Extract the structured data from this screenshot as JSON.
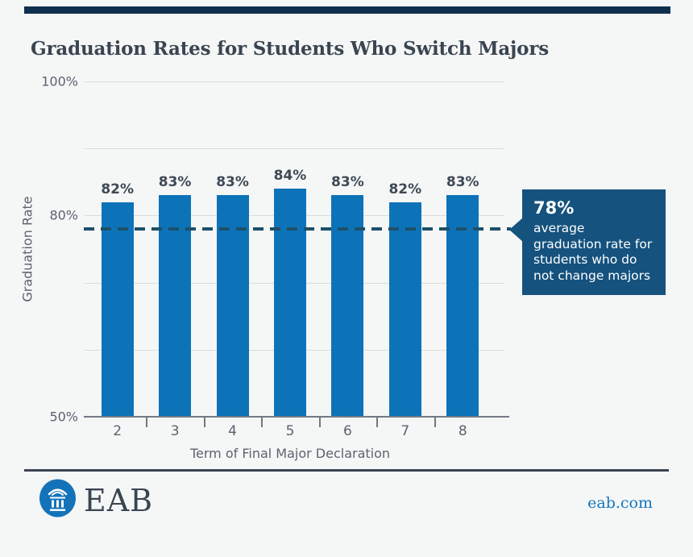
{
  "page": {
    "background_color": "#f5f6f6",
    "top_stripe_color": "#102e4e"
  },
  "header": {
    "title": "Graduation Rates for Students Who Switch Majors"
  },
  "chart_data": {
    "type": "bar",
    "title": "Graduation Rates for Students Who Switch Majors",
    "categories": [
      "2",
      "3",
      "4",
      "5",
      "6",
      "7",
      "8"
    ],
    "values": [
      82,
      83,
      83,
      84,
      83,
      82,
      83
    ],
    "value_labels": [
      "82%",
      "83%",
      "83%",
      "84%",
      "83%",
      "82%",
      "83%"
    ],
    "xlabel": "Term of Final Major Declaration",
    "ylabel": "Graduation Rate",
    "ylim": [
      50,
      100
    ],
    "yticks": [
      {
        "value": 100,
        "label": "100%"
      },
      {
        "value": 80,
        "label": "80%"
      },
      {
        "value": 50,
        "label": "50%"
      }
    ],
    "gridline_values": [
      100,
      90,
      80,
      70,
      60
    ],
    "grid": true,
    "legend": "none",
    "bar_color": "#0d73b9",
    "reference_line": {
      "value": 78,
      "style": "dashed",
      "color": "#1d5068",
      "label": "78%",
      "description": "average graduation rate for students who do not change majors"
    }
  },
  "callout": {
    "headline": "78%",
    "body": "average graduation rate for students who do not change majors",
    "background_color": "#15527e"
  },
  "footer": {
    "brand": "EAB",
    "logo_icon": "eab-building-icon",
    "link": "eab.com",
    "link_color": "#1478bd"
  }
}
